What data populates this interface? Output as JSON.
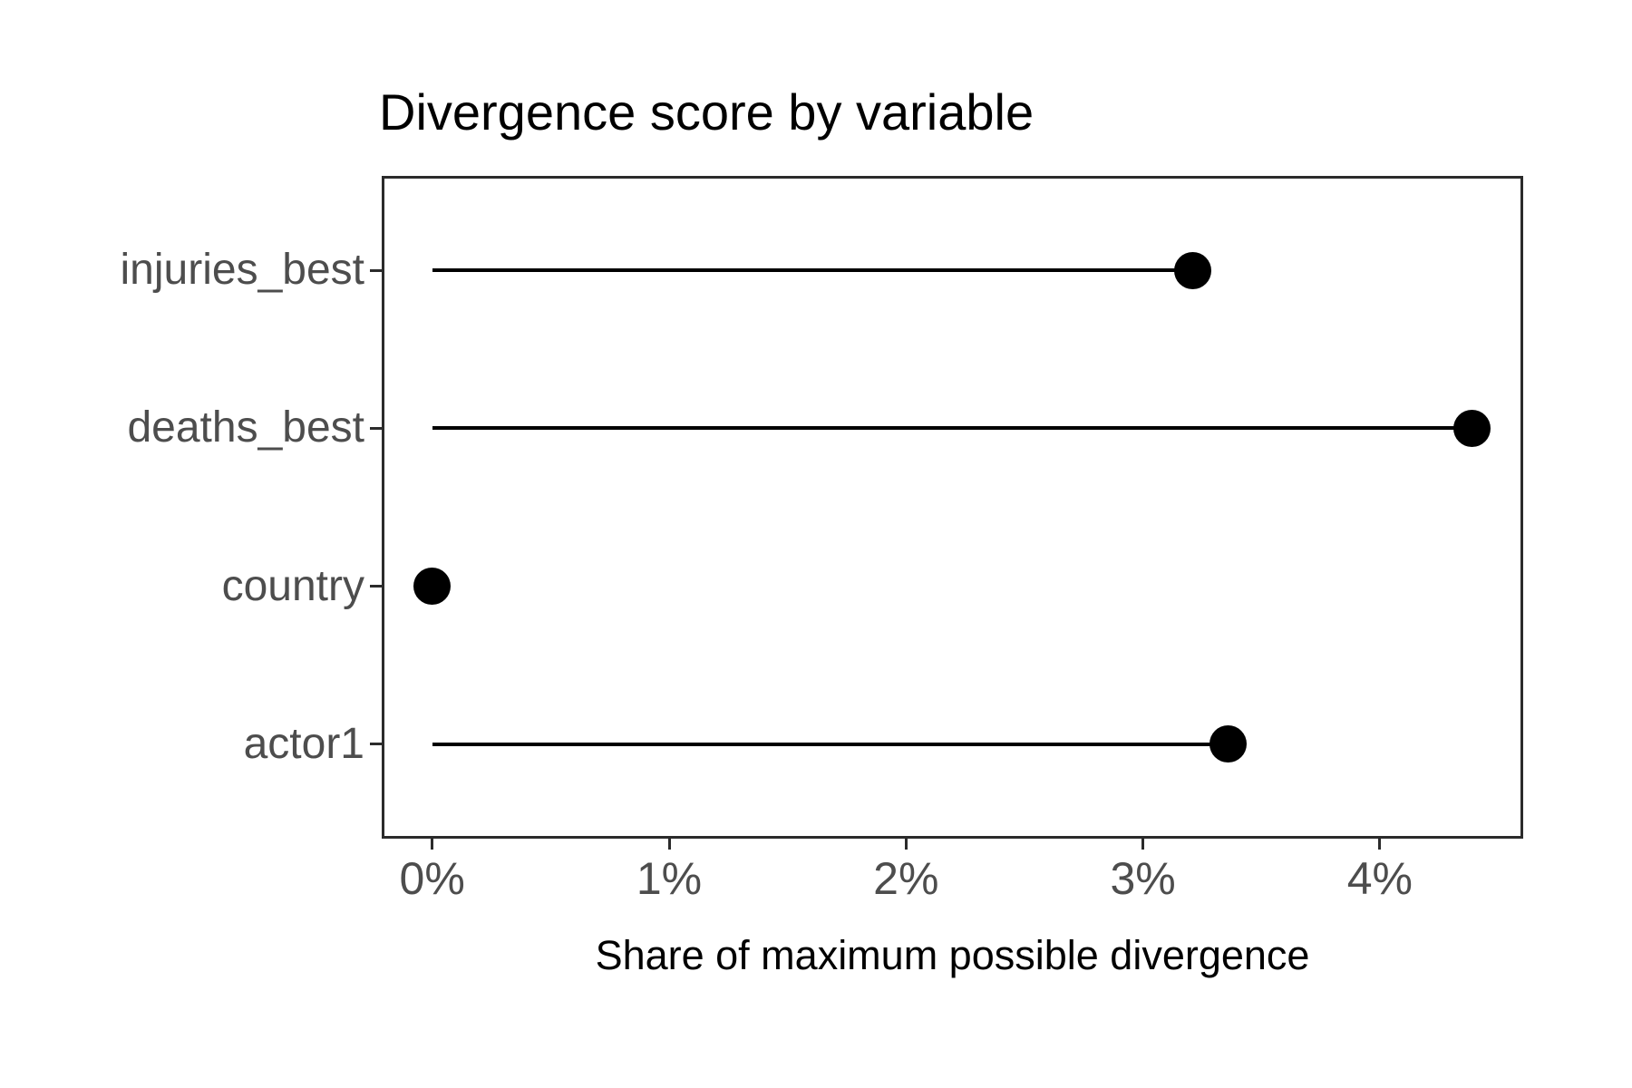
{
  "chart_data": {
    "type": "scatter",
    "variant": "lollipop",
    "title": "Divergence score by variable",
    "xlabel": "Share of maximum possible divergence",
    "ylabel": "",
    "categories": [
      "injuries_best",
      "deaths_best",
      "country",
      "actor1"
    ],
    "values": [
      3.21,
      4.39,
      0.0,
      3.36
    ],
    "value_unit": "percent",
    "x_ticks": [
      {
        "value": 0,
        "label": "0%"
      },
      {
        "value": 1,
        "label": "1%"
      },
      {
        "value": 2,
        "label": "2%"
      },
      {
        "value": 3,
        "label": "3%"
      },
      {
        "value": 4,
        "label": "4%"
      }
    ],
    "xlim": [
      -0.21,
      4.61
    ],
    "grid": "off",
    "legend": "none",
    "colors": {
      "point": "#000000",
      "stem": "#000000",
      "axis_text": "#4d4d4d",
      "title_text": "#000000",
      "panel_border": "#2b2b2b"
    }
  }
}
